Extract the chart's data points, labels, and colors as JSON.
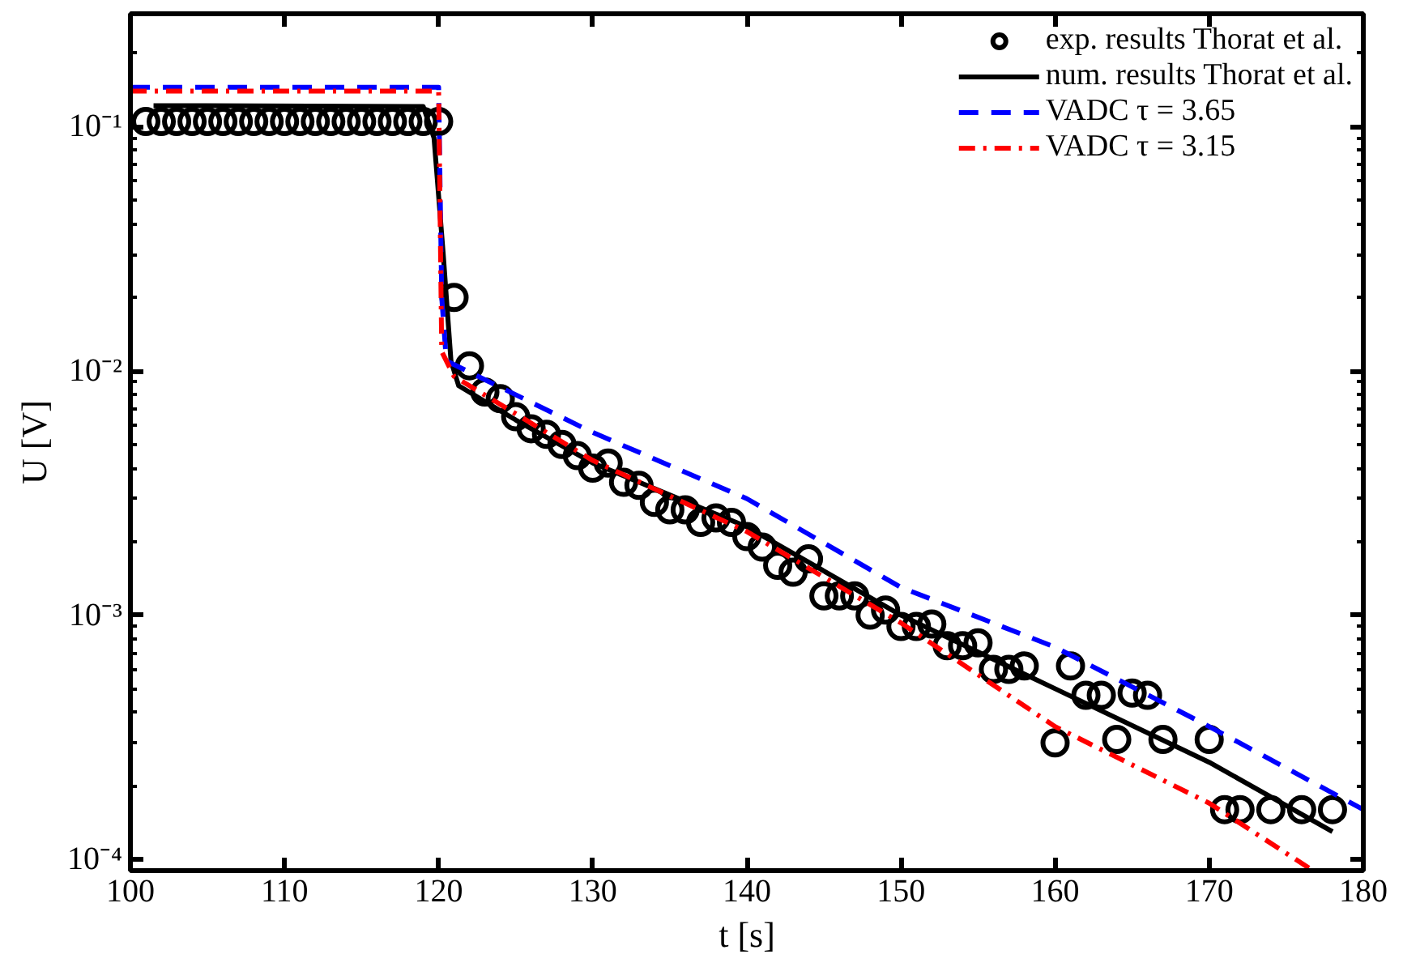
{
  "chart_data": {
    "type": "line",
    "xlabel": "t [s]",
    "ylabel": "U [V]",
    "xlim": [
      100,
      180
    ],
    "xticks": [
      100,
      110,
      120,
      130,
      140,
      150,
      160,
      170,
      180
    ],
    "ylim": [
      9e-05,
      0.29
    ],
    "log": "y",
    "yticks": [
      {
        "value": 0.0001,
        "label": "10⁻⁴"
      },
      {
        "value": 0.001,
        "label": "10⁻³"
      },
      {
        "value": 0.01,
        "label": "10⁻²"
      },
      {
        "value": 0.1,
        "label": "10⁻¹"
      }
    ],
    "grid": false,
    "legend": "top right",
    "series": [
      {
        "name": "exp. results Thorat et al.",
        "type": "scatter",
        "marker": "circle",
        "color": "#000000",
        "x": [
          101,
          102,
          103,
          104,
          105,
          106,
          107,
          108,
          109,
          110,
          111,
          112,
          113,
          114,
          115,
          116,
          117,
          118,
          119,
          120,
          121,
          122,
          123,
          124,
          125,
          126,
          127,
          128,
          129,
          130,
          131,
          132,
          133,
          134,
          135,
          136,
          137,
          138,
          139,
          140,
          141,
          142,
          143,
          144,
          145,
          146,
          147,
          148,
          149,
          150,
          151,
          152,
          153,
          154,
          155,
          156,
          157,
          158,
          160,
          161,
          162,
          163,
          164,
          165,
          166,
          167,
          170,
          171,
          172,
          174,
          176,
          178
        ],
        "values": [
          0.105,
          0.105,
          0.105,
          0.105,
          0.105,
          0.105,
          0.105,
          0.105,
          0.105,
          0.105,
          0.105,
          0.105,
          0.105,
          0.105,
          0.105,
          0.105,
          0.105,
          0.105,
          0.105,
          0.105,
          0.02,
          0.0105,
          0.0082,
          0.0077,
          0.0065,
          0.0058,
          0.0055,
          0.005,
          0.0045,
          0.004,
          0.0042,
          0.0035,
          0.0034,
          0.0029,
          0.0027,
          0.0027,
          0.0024,
          0.0025,
          0.0024,
          0.0021,
          0.0019,
          0.0016,
          0.0015,
          0.0017,
          0.0012,
          0.0012,
          0.0012,
          0.001,
          0.00105,
          0.0009,
          0.0009,
          0.00092,
          0.00075,
          0.00075,
          0.00077,
          0.0006,
          0.0006,
          0.00062,
          0.0003,
          0.00062,
          0.00047,
          0.00047,
          0.00031,
          0.00048,
          0.00047,
          0.00031,
          0.00031,
          0.00016,
          0.00016,
          0.00016,
          0.00016,
          0.00016
        ]
      },
      {
        "name": "num. results Thorat et al.",
        "line_style": "solid",
        "color": "#000000",
        "x": [
          101.5,
          119,
          119.7,
          120.3,
          120.8,
          121.3,
          125,
          130,
          140,
          150,
          160,
          170,
          178
        ],
        "values": [
          0.122,
          0.121,
          0.09,
          0.03,
          0.011,
          0.0087,
          0.0063,
          0.0042,
          0.0023,
          0.001,
          0.0005,
          0.00025,
          0.00013
        ]
      },
      {
        "name": "VADC τ = 3.65",
        "line_style": "dashed",
        "color": "#0000ff",
        "x": [
          100,
          120,
          120.2,
          120.5,
          130,
          140,
          150,
          160,
          170,
          180
        ],
        "values": [
          0.145,
          0.145,
          0.02,
          0.011,
          0.0056,
          0.003,
          0.0013,
          0.00074,
          0.00035,
          0.00016
        ]
      },
      {
        "name": "VADC τ = 3.15",
        "line_style": "dashdot",
        "color": "#ff0000",
        "x": [
          100,
          120,
          120.2,
          121,
          130,
          140,
          150,
          160,
          170,
          176.5
        ],
        "values": [
          0.14,
          0.14,
          0.012,
          0.0095,
          0.0043,
          0.0022,
          0.00093,
          0.00035,
          0.00017,
          9.2e-05
        ]
      }
    ]
  }
}
